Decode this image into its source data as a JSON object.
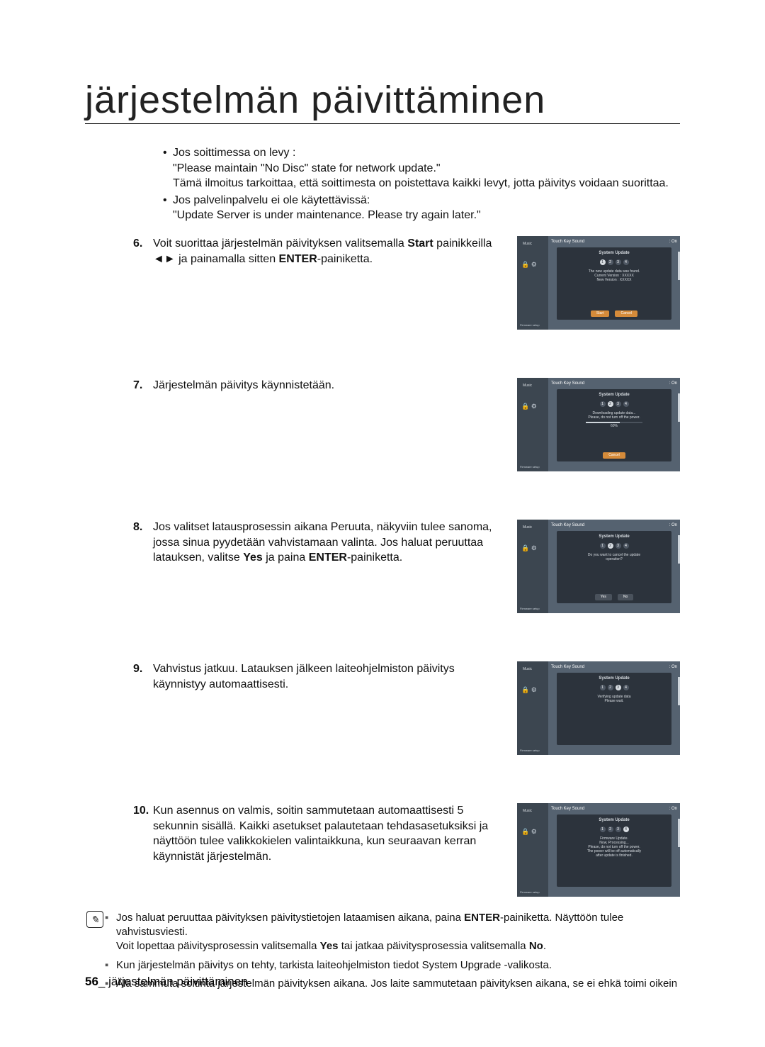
{
  "title": "järjestelmän päivittäminen",
  "bullets": [
    {
      "lead": "Jos soittimessa on levy :",
      "lines": [
        "\"Please maintain \"No Disc\" state for network update.\"",
        "Tämä ilmoitus tarkoittaa, että soittimesta on poistettava kaikki levyt, jotta päivitys voidaan suorittaa."
      ]
    },
    {
      "lead": "Jos palvelinpalvelu ei ole käytettävissä:",
      "lines": [
        "\"Update Server is under maintenance. Please try again later.\""
      ]
    }
  ],
  "steps": {
    "s6": {
      "num": "6.",
      "pre": "Voit suorittaa järjestelmän päivityksen valitsemalla ",
      "bold1": "Start",
      "mid": " painikkeilla ◄► ja painamalla sitten ",
      "bold2": "ENTER",
      "post": "-painiketta."
    },
    "s7": {
      "num": "7.",
      "text": "Järjestelmän päivitys käynnistetään."
    },
    "s8": {
      "num": "8.",
      "pre": "Jos valitset latausprosessin aikana Peruuta, näkyviin tulee sanoma, jossa sinua pyydetään vahvistamaan valinta. Jos haluat peruuttaa latauksen, valitse ",
      "bold1": "Yes",
      "mid": " ja paina ",
      "bold2": "ENTER",
      "post": "-painiketta."
    },
    "s9": {
      "num": "9.",
      "text": "Vahvistus jatkuu. Latauksen jälkeen laiteohjelmiston päivitys käynnistyy automaattisesti."
    },
    "s10": {
      "num": "10.",
      "text": "Kun asennus on valmis, soitin sammutetaan automaattisesti 5 sekunnin sisällä. Kaikki asetukset palautetaan tehdasasetuksiksi ja näyttöön tulee valikkokielen valintaikkuna, kun seuraavan kerran käynnistät järjestelmän."
    }
  },
  "shots_common": {
    "left_label": "Music",
    "left_icons": "🔒 ⚙",
    "left_bottom": "Firmware setup",
    "top_left": "Touch Key Sound",
    "top_right": ": On",
    "modal_title": "System Update",
    "side_color": "#cfd6dc"
  },
  "shots": {
    "sc6": {
      "active_dot": 1,
      "msg": "The new update data was found.\nCurrent Version : XXXXX\nNew Version : XXXXX",
      "btns": [
        [
          "Start",
          "orange"
        ],
        [
          "Cancel",
          "orange"
        ]
      ],
      "progress": null
    },
    "sc7": {
      "active_dot": 2,
      "msg": "Downloading update data...\nPlease, do not turn off the power.",
      "btns": [
        [
          "Cancel",
          "orange"
        ]
      ],
      "progress": 60,
      "progress_label": "60%"
    },
    "sc8": {
      "active_dot": 2,
      "msg": "Do you want to cancel the update\noperation?",
      "btns": [
        [
          "Yes",
          ""
        ],
        [
          "No",
          ""
        ]
      ],
      "progress": null
    },
    "sc9": {
      "active_dot": 3,
      "msg": "Verifying update data\nPlease wait.",
      "btns": [],
      "progress": null
    },
    "sc10": {
      "active_dot": 4,
      "msg": "Firmware Update.\nNow, Processing...\nPlease, do not turn off the power.\nThe power will be off automatically\nafter update is finished.",
      "btns": [],
      "progress": null
    }
  },
  "notes": [
    {
      "parts": [
        {
          "t": "Jos haluat peruuttaa päivityksen päivitystietojen lataamisen aikana, paina "
        },
        {
          "t": "ENTER",
          "b": true
        },
        {
          "t": "-painiketta. Näyttöön tulee vahvistusviesti."
        }
      ],
      "line2": [
        {
          "t": "Voit lopettaa päivitysprosessin valitsemalla "
        },
        {
          "t": "Yes",
          "b": true
        },
        {
          "t": " tai jatkaa päivitysprosessia valitsemalla "
        },
        {
          "t": "No",
          "b": true
        },
        {
          "t": "."
        }
      ]
    },
    {
      "parts": [
        {
          "t": "Kun järjestelmän päivitys on tehty, tarkista laiteohjelmiston tiedot System Upgrade -valikosta."
        }
      ]
    },
    {
      "parts": [
        {
          "t": "Älä sammuta soitinta järjestelmän päivityksen aikana. Jos laite sammutetaan päivityksen aikana, se ei ehkä toimi oikein"
        }
      ]
    }
  ],
  "footer": {
    "num": "56",
    "sep": "_ ",
    "text": "järjestelmän päivittäminen"
  }
}
